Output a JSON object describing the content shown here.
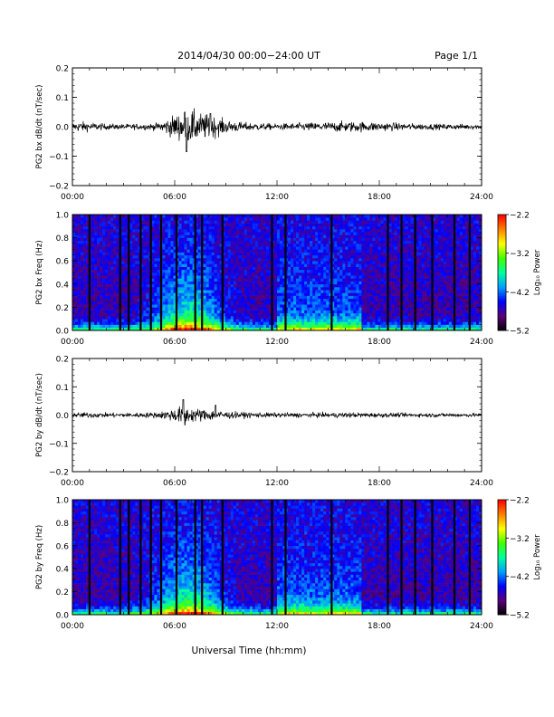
{
  "header": {
    "title": "2014/04/30  00:00−24:00 UT",
    "page": "Page 1/1"
  },
  "footer": {
    "xlabel": "Universal Time (hh:mm)"
  },
  "colors": {
    "trace": "#000000",
    "colormap": [
      "#000000",
      "#5a0078",
      "#0000ff",
      "#00a0ff",
      "#00ffa0",
      "#40ff00",
      "#ffff00",
      "#ff8000",
      "#ff0000"
    ]
  },
  "chart_data": [
    {
      "type": "line",
      "ylabel": "PG2 bx dB/dt (nT/sec)",
      "xlim": [
        0,
        24
      ],
      "ylim": [
        -0.2,
        0.2
      ],
      "x_ticks": [
        "00:00",
        "06:00",
        "12:00",
        "18:00",
        "24:00"
      ],
      "y_ticks": [
        "0.2",
        "0.1",
        "0.0",
        "−0.1",
        "−0.2"
      ],
      "y_tick_values": [
        0.2,
        0.1,
        0.0,
        -0.1,
        -0.2
      ],
      "amplitude_envelope": {
        "x": [
          0,
          0.5,
          1,
          2,
          3,
          4,
          5,
          5.6,
          6,
          6.5,
          7,
          7.5,
          8,
          8.5,
          9,
          10,
          11,
          12,
          13,
          14,
          15,
          16,
          17,
          18,
          19,
          20,
          21,
          22,
          23,
          24
        ],
        "y": [
          0.012,
          0.018,
          0.014,
          0.01,
          0.009,
          0.01,
          0.012,
          0.028,
          0.04,
          0.05,
          0.055,
          0.045,
          0.04,
          0.032,
          0.022,
          0.015,
          0.012,
          0.01,
          0.012,
          0.014,
          0.016,
          0.018,
          0.017,
          0.015,
          0.013,
          0.011,
          0.01,
          0.009,
          0.009,
          0.008
        ]
      },
      "peaks": [
        {
          "x": 6.6,
          "y": 0.05
        },
        {
          "x": 6.7,
          "y": -0.085
        },
        {
          "x": 8.1,
          "y": 0.045
        }
      ]
    },
    {
      "type": "heatmap",
      "ylabel": "PG2 bx Freq (Hz)",
      "xlim": [
        0,
        24
      ],
      "ylim": [
        0,
        1.0
      ],
      "x_ticks": [
        "00:00",
        "06:00",
        "12:00",
        "18:00",
        "24:00"
      ],
      "y_ticks": [
        "1.0",
        "0.8",
        "0.6",
        "0.4",
        "0.2",
        "0.0"
      ],
      "y_tick_values": [
        1.0,
        0.8,
        0.6,
        0.4,
        0.2,
        0.0
      ],
      "colorbar": {
        "label": "Log₁₀ Power",
        "ticks": [
          "−2.2",
          "−3.2",
          "−4.2",
          "−5.2"
        ],
        "tick_values": [
          -2.2,
          -3.2,
          -4.2,
          -5.2
        ],
        "range": [
          -5.2,
          -2.2
        ]
      },
      "gap_times": [
        1.0,
        2.8,
        3.3,
        4.0,
        4.6,
        5.2,
        6.1,
        7.2,
        7.6,
        8.8,
        11.7,
        12.5,
        15.2,
        18.5,
        19.3,
        20.1,
        21.1,
        22.4,
        23.3
      ]
    },
    {
      "type": "line",
      "ylabel": "PG2 by dB/dt (nT/sec)",
      "xlim": [
        0,
        24
      ],
      "ylim": [
        -0.2,
        0.2
      ],
      "x_ticks": [
        "00:00",
        "06:00",
        "12:00",
        "18:00",
        "24:00"
      ],
      "y_ticks": [
        "0.2",
        "0.1",
        "0.0",
        "−0.1",
        "−0.2"
      ],
      "y_tick_values": [
        0.2,
        0.1,
        0.0,
        -0.1,
        -0.2
      ],
      "amplitude_envelope": {
        "x": [
          0,
          1,
          2,
          3,
          4,
          5,
          5.6,
          6,
          6.5,
          7,
          7.5,
          8,
          8.5,
          9,
          10,
          12,
          14,
          16,
          18,
          20,
          22,
          24
        ],
        "y": [
          0.008,
          0.01,
          0.008,
          0.008,
          0.009,
          0.01,
          0.018,
          0.025,
          0.03,
          0.025,
          0.022,
          0.02,
          0.018,
          0.013,
          0.01,
          0.008,
          0.008,
          0.009,
          0.008,
          0.007,
          0.007,
          0.006
        ]
      },
      "peaks": [
        {
          "x": 6.5,
          "y": 0.055
        },
        {
          "x": 6.6,
          "y": -0.035
        },
        {
          "x": 8.4,
          "y": 0.035
        }
      ]
    },
    {
      "type": "heatmap",
      "ylabel": "PG2 by Freq (Hz)",
      "xlim": [
        0,
        24
      ],
      "ylim": [
        0,
        1.0
      ],
      "x_ticks": [
        "00:00",
        "06:00",
        "12:00",
        "18:00",
        "24:00"
      ],
      "y_ticks": [
        "1.0",
        "0.8",
        "0.6",
        "0.4",
        "0.2",
        "0.0"
      ],
      "y_tick_values": [
        1.0,
        0.8,
        0.6,
        0.4,
        0.2,
        0.0
      ],
      "colorbar": {
        "label": "Log₁₀ Power",
        "ticks": [
          "−2.2",
          "−3.2",
          "−4.2",
          "−5.2"
        ],
        "tick_values": [
          -2.2,
          -3.2,
          -4.2,
          -5.2
        ],
        "range": [
          -5.2,
          -2.2
        ]
      },
      "gap_times": [
        1.0,
        2.8,
        3.3,
        4.0,
        4.6,
        5.2,
        6.1,
        7.2,
        7.6,
        8.8,
        11.7,
        12.5,
        15.2,
        18.5,
        19.3,
        20.1,
        21.1,
        22.4,
        23.3
      ]
    }
  ]
}
